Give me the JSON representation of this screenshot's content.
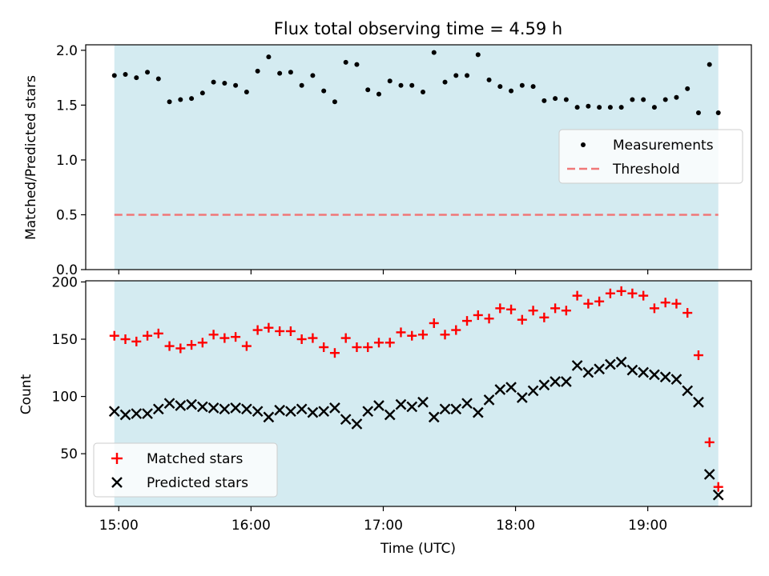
{
  "title": "Flux total observing time = 4.59 h",
  "colors": {
    "shade": "#d4ebf1",
    "matched": "#ff0000",
    "predicted": "#000000",
    "measurement": "#000000",
    "threshold": "#f07878"
  },
  "chart_data": [
    {
      "type": "scatter",
      "ylabel": "Matched/Predicted stars",
      "xlim": [
        "14:45",
        "19:47"
      ],
      "ylim": [
        0,
        2.05
      ],
      "yticks": [
        "0.0",
        "0.5",
        "1.0",
        "1.5",
        "2.0"
      ],
      "yticks_values": [
        0,
        0.5,
        1.0,
        1.5,
        2.0
      ],
      "shaded_span": [
        "14:58",
        "19:32"
      ],
      "legend": {
        "placement": "center-right",
        "entries": [
          "Measurements",
          "Threshold"
        ]
      },
      "threshold": 0.5,
      "series": [
        {
          "name": "Measurements",
          "marker": "dot",
          "x": [
            "14:58",
            "15:03",
            "15:08",
            "15:13",
            "15:18",
            "15:23",
            "15:28",
            "15:33",
            "15:38",
            "15:43",
            "15:48",
            "15:53",
            "15:58",
            "16:03",
            "16:08",
            "16:13",
            "16:18",
            "16:23",
            "16:28",
            "16:33",
            "16:38",
            "16:43",
            "16:48",
            "16:53",
            "16:58",
            "17:03",
            "17:08",
            "17:13",
            "17:18",
            "17:23",
            "17:28",
            "17:33",
            "17:38",
            "17:43",
            "17:48",
            "17:53",
            "17:58",
            "18:03",
            "18:08",
            "18:13",
            "18:18",
            "18:23",
            "18:28",
            "18:33",
            "18:38",
            "18:43",
            "18:48",
            "18:53",
            "18:58",
            "19:03",
            "19:08",
            "19:13",
            "19:18",
            "19:23",
            "19:28",
            "19:32"
          ],
          "y": [
            1.77,
            1.78,
            1.75,
            1.8,
            1.74,
            1.53,
            1.55,
            1.56,
            1.61,
            1.71,
            1.7,
            1.68,
            1.62,
            1.81,
            1.94,
            1.79,
            1.8,
            1.68,
            1.77,
            1.63,
            1.53,
            1.89,
            1.87,
            1.64,
            1.6,
            1.72,
            1.68,
            1.68,
            1.62,
            1.98,
            1.71,
            1.77,
            1.77,
            1.96,
            1.73,
            1.67,
            1.63,
            1.68,
            1.67,
            1.54,
            1.56,
            1.55,
            1.48,
            1.49,
            1.48,
            1.48,
            1.48,
            1.55,
            1.55,
            1.48,
            1.55,
            1.57,
            1.65,
            1.43,
            1.87,
            1.43
          ]
        }
      ]
    },
    {
      "type": "scatter",
      "ylabel": "Count",
      "xlabel": "Time (UTC)",
      "xlim": [
        "14:45",
        "19:47"
      ],
      "xticks": [
        "15:00",
        "16:00",
        "17:00",
        "18:00",
        "19:00"
      ],
      "ylim": [
        4,
        201
      ],
      "yticks": [
        "50",
        "100",
        "150",
        "200"
      ],
      "yticks_values": [
        50,
        100,
        150,
        200
      ],
      "shaded_span": [
        "14:58",
        "19:32"
      ],
      "legend": {
        "placement": "lower-left",
        "entries": [
          "Matched stars",
          "Predicted stars"
        ]
      },
      "series": [
        {
          "name": "Matched stars",
          "marker": "plus",
          "x": [
            "14:58",
            "15:03",
            "15:08",
            "15:13",
            "15:18",
            "15:23",
            "15:28",
            "15:33",
            "15:38",
            "15:43",
            "15:48",
            "15:53",
            "15:58",
            "16:03",
            "16:08",
            "16:13",
            "16:18",
            "16:23",
            "16:28",
            "16:33",
            "16:38",
            "16:43",
            "16:48",
            "16:53",
            "16:58",
            "17:03",
            "17:08",
            "17:13",
            "17:18",
            "17:23",
            "17:28",
            "17:33",
            "17:38",
            "17:43",
            "17:48",
            "17:53",
            "17:58",
            "18:03",
            "18:08",
            "18:13",
            "18:18",
            "18:23",
            "18:28",
            "18:33",
            "18:38",
            "18:43",
            "18:48",
            "18:53",
            "18:58",
            "19:03",
            "19:08",
            "19:13",
            "19:18",
            "19:23",
            "19:28",
            "19:32"
          ],
          "y": [
            153,
            150,
            148,
            153,
            155,
            144,
            142,
            145,
            147,
            154,
            151,
            152,
            144,
            158,
            160,
            157,
            157,
            150,
            151,
            143,
            138,
            151,
            143,
            143,
            147,
            147,
            156,
            153,
            154,
            164,
            154,
            158,
            166,
            171,
            168,
            177,
            176,
            167,
            175,
            169,
            177,
            175,
            188,
            181,
            183,
            190,
            192,
            190,
            188,
            177,
            182,
            181,
            173,
            136,
            60,
            21
          ]
        },
        {
          "name": "Predicted stars",
          "marker": "x",
          "x": [
            "14:58",
            "15:03",
            "15:08",
            "15:13",
            "15:18",
            "15:23",
            "15:28",
            "15:33",
            "15:38",
            "15:43",
            "15:48",
            "15:53",
            "15:58",
            "16:03",
            "16:08",
            "16:13",
            "16:18",
            "16:23",
            "16:28",
            "16:33",
            "16:38",
            "16:43",
            "16:48",
            "16:53",
            "16:58",
            "17:03",
            "17:08",
            "17:13",
            "17:18",
            "17:23",
            "17:28",
            "17:33",
            "17:38",
            "17:43",
            "17:48",
            "17:53",
            "17:58",
            "18:03",
            "18:08",
            "18:13",
            "18:18",
            "18:23",
            "18:28",
            "18:33",
            "18:38",
            "18:43",
            "18:48",
            "18:53",
            "18:58",
            "19:03",
            "19:08",
            "19:13",
            "19:18",
            "19:23",
            "19:28",
            "19:32"
          ],
          "y": [
            87,
            84,
            85,
            85,
            89,
            94,
            92,
            93,
            91,
            90,
            89,
            90,
            89,
            87,
            82,
            88,
            87,
            89,
            86,
            87,
            90,
            80,
            76,
            87,
            92,
            84,
            93,
            91,
            95,
            82,
            89,
            89,
            94,
            86,
            97,
            106,
            108,
            99,
            105,
            110,
            113,
            113,
            127,
            121,
            124,
            128,
            130,
            123,
            121,
            119,
            117,
            115,
            105,
            95,
            32,
            14
          ]
        }
      ]
    }
  ]
}
